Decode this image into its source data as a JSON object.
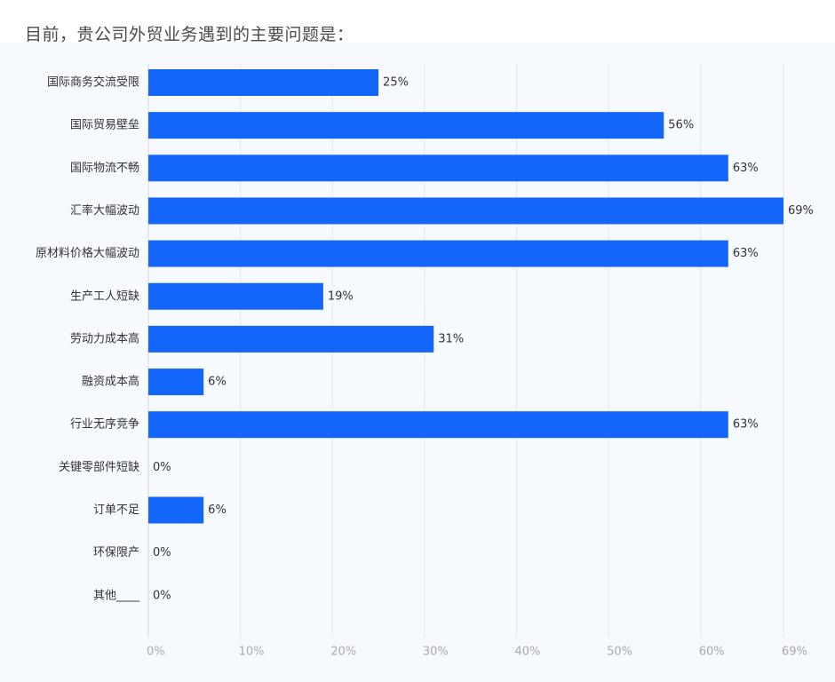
{
  "question": {
    "title": "目前，贵公司外贸业务遇到的主要问题是："
  },
  "colors": {
    "bar": "#1466fa",
    "grid": "#e3e6ea",
    "axis": "#d9d9d9",
    "panel_background": "#f6f9fe"
  },
  "chart_data": {
    "type": "bar",
    "orientation": "horizontal",
    "categories": [
      "国际商务交流受限",
      "国际贸易壁垒",
      "国际物流不畅",
      "汇率大幅波动",
      "原材料价格大幅波动",
      "生产工人短缺",
      "劳动力成本高",
      "融资成本高",
      "行业无序竞争",
      "关键零部件短缺",
      "订单不足",
      "环保限产",
      "其他____"
    ],
    "values": [
      25,
      56,
      63,
      69,
      63,
      19,
      31,
      6,
      63,
      0,
      6,
      0,
      0
    ],
    "value_labels": [
      "25%",
      "56%",
      "63%",
      "69%",
      "63%",
      "19%",
      "31%",
      "6%",
      "63%",
      "0%",
      "6%",
      "0%",
      "0%"
    ],
    "xticks": [
      0,
      10,
      20,
      30,
      40,
      50,
      60,
      69
    ],
    "xtick_labels": [
      "0%",
      "10%",
      "20%",
      "30%",
      "40%",
      "50%",
      "60%",
      "69%"
    ],
    "xlim": [
      0,
      69
    ],
    "grid": true
  }
}
